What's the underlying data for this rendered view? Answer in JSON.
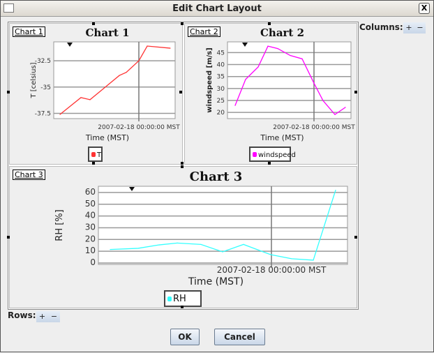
{
  "window": {
    "title": "Edit Chart Layout",
    "close_label": "X"
  },
  "columns": {
    "label": "Columns:",
    "add": "+",
    "remove": "−"
  },
  "rows": {
    "label": "Rows:",
    "add": "+",
    "remove": "−"
  },
  "buttons": {
    "ok": "OK",
    "cancel": "Cancel"
  },
  "cells": [
    {
      "tag": "Chart 1"
    },
    {
      "tag": "Chart 2"
    },
    {
      "tag": "Chart 3"
    }
  ],
  "chart_data": [
    {
      "type": "line",
      "title": "Chart 1",
      "xlabel": "Time (MST)",
      "ylabel": "T [celsius]",
      "x_tick_label": "2007-02-18 00:00:00 MST",
      "yticks": [
        "-32.5",
        "-35",
        "-37.5"
      ],
      "ylim": [
        -38,
        -30.7
      ],
      "grid": true,
      "legend": "bottom",
      "series": [
        {
          "name": "T",
          "color": "#ff3333",
          "values": [
            -37.6,
            -36.0,
            -36.2,
            -35.0,
            -33.9,
            -33.6,
            -32.5,
            -31.1,
            -31.3
          ]
        }
      ]
    },
    {
      "type": "line",
      "title": "Chart 2",
      "xlabel": "Time (MST)",
      "ylabel": "windspeed [m/s]",
      "x_tick_label": "2007-02-18 00:00:00 MST",
      "yticks": [
        "45",
        "40",
        "35",
        "30",
        "25",
        "20"
      ],
      "ylim": [
        17.4,
        49.5
      ],
      "grid": true,
      "legend": "bottom",
      "series": [
        {
          "name": "windspeed",
          "color": "#ff00ff",
          "values": [
            22.9,
            33.8,
            39.0,
            47.7,
            46.7,
            43.8,
            42.4,
            32.2,
            24.9,
            19.1,
            22.1
          ]
        }
      ]
    },
    {
      "type": "line",
      "title": "Chart 3",
      "xlabel": "Time (MST)",
      "ylabel": "RH [%]",
      "x_tick_label": "2007-02-18 00:00:00 MST",
      "yticks": [
        "60",
        "50",
        "40",
        "30",
        "20",
        "10",
        "0"
      ],
      "ylim": [
        -1.2,
        65.3
      ],
      "grid": true,
      "legend": "bottom",
      "series": [
        {
          "name": "RH",
          "color": "#33ffff",
          "values": [
            11.5,
            12.5,
            15.4,
            17.0,
            15.8,
            9.5,
            15.8,
            7.1,
            3.6,
            2.4,
            62.0
          ]
        }
      ]
    }
  ]
}
